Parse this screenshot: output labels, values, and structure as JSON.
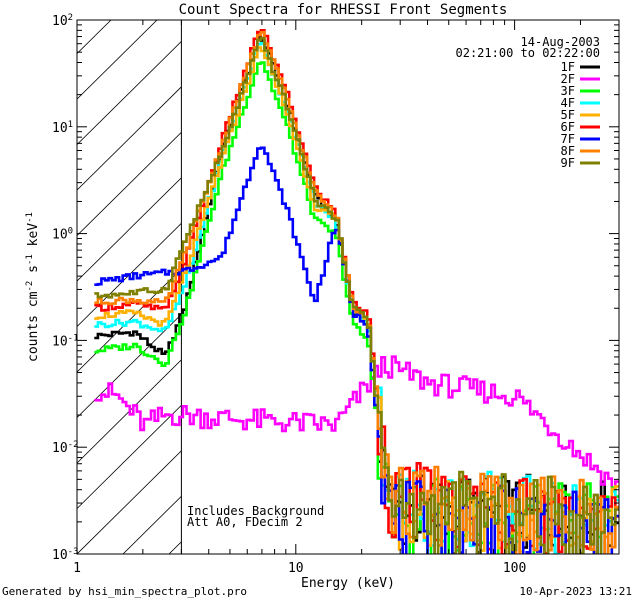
{
  "chart_data": {
    "type": "line",
    "title": "Count Spectra for RHESSI Front Segments",
    "xlabel": "Energy (keV)",
    "ylabel_parts": {
      "base": "counts cm",
      "e1": "-2",
      "mid": " s",
      "e2": "-1",
      "unit": " keV",
      "e3": "-1"
    },
    "x_scale": "log",
    "y_scale": "log",
    "xlim": [
      1,
      300
    ],
    "ylim": [
      0.001,
      100
    ],
    "x_tick_labels": [
      {
        "value": 1,
        "label": "1"
      },
      {
        "value": 10,
        "label": "10"
      },
      {
        "value": 100,
        "label": "100"
      }
    ],
    "y_tick_labels": [
      {
        "value": 100,
        "base": "10",
        "exp": "2"
      },
      {
        "value": 10,
        "base": "10",
        "exp": "1"
      },
      {
        "value": 1,
        "base": "10",
        "exp": "0"
      },
      {
        "value": 0.1,
        "base": "10",
        "exp": "-1"
      },
      {
        "value": 0.01,
        "base": "10",
        "exp": "-2"
      },
      {
        "value": 0.001,
        "base": "10",
        "exp": "-3"
      }
    ],
    "date": "14-Aug-2003",
    "time_range": "02:21:00 to 02:22:00",
    "annotations": [
      "Includes Background",
      "Att A0, FDecim 2"
    ],
    "hatched_region_kev": [
      1,
      3
    ],
    "legend_position": "top-right",
    "series": [
      {
        "name": "1F",
        "color": "#000000",
        "low": [
          0.11,
          0.12,
          0.07,
          0.22
        ],
        "peak": 75,
        "hi": [
          0.19,
          0.15,
          0.0025,
          0.002
        ]
      },
      {
        "name": "2F",
        "color": "#ff00ff",
        "low": [
          0.035,
          0.03,
          0.02,
          0.02
        ],
        "peak": 0.018,
        "hi": [
          0.016,
          0.06,
          0.04,
          0.004
        ]
      },
      {
        "name": "3F",
        "color": "#00ff00",
        "low": [
          0.08,
          0.09,
          0.06,
          0.2
        ],
        "peak": 45,
        "hi": [
          0.14,
          0.1,
          0.002,
          0.002
        ]
      },
      {
        "name": "4F",
        "color": "#00ffff",
        "low": [
          0.14,
          0.15,
          0.12,
          0.35
        ],
        "peak": 65,
        "hi": [
          0.19,
          0.15,
          0.003,
          0.002
        ]
      },
      {
        "name": "5F",
        "color": "#ffb000",
        "low": [
          0.17,
          0.18,
          0.14,
          0.45
        ],
        "peak": 60,
        "hi": [
          0.2,
          0.16,
          0.0025,
          0.002
        ]
      },
      {
        "name": "6F",
        "color": "#ff0000",
        "low": [
          0.2,
          0.22,
          0.19,
          0.6
        ],
        "peak": 90,
        "hi": [
          0.22,
          0.18,
          0.003,
          0.002
        ]
      },
      {
        "name": "7F",
        "color": "#0000ff",
        "low": [
          0.35,
          0.4,
          0.43,
          0.45
        ],
        "peak": 7.5,
        "hi": [
          0.18,
          0.14,
          0.002,
          0.0015
        ]
      },
      {
        "name": "8F",
        "color": "#ff8000",
        "low": [
          0.23,
          0.24,
          0.22,
          0.7
        ],
        "peak": 82,
        "hi": [
          0.21,
          0.17,
          0.003,
          0.002
        ]
      },
      {
        "name": "9F",
        "color": "#808000",
        "low": [
          0.26,
          0.28,
          0.3,
          0.9
        ],
        "peak": 70,
        "hi": [
          0.2,
          0.16,
          0.0025,
          0.002
        ]
      }
    ]
  },
  "footer": {
    "generated_by": "Generated by hsi_min_spectra_plot.pro",
    "timestamp": "10-Apr-2023 13:21"
  }
}
